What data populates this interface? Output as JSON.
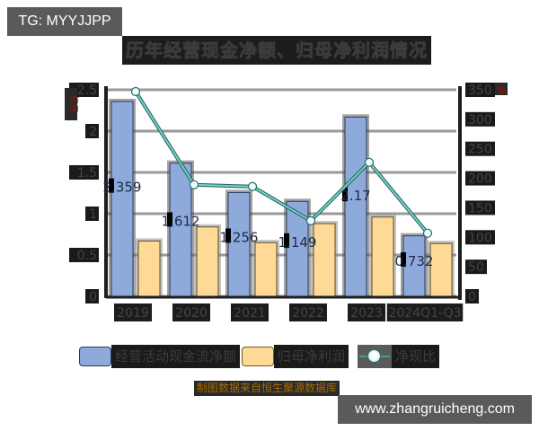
{
  "badge": {
    "text": "TG: MYYJJPP"
  },
  "title": "历年经营现金净额、归母净利润情况",
  "left_axis_unit": "亿元",
  "right_axis_unit": "%",
  "legend": [
    {
      "label": "经营活动现金流净额",
      "color": "#8eaadb",
      "type": "bar"
    },
    {
      "label": "归母净利润",
      "color": "#ffd996",
      "type": "bar"
    },
    {
      "label": "净现比",
      "color": "#6fd3c9",
      "type": "line"
    }
  ],
  "source": "制图数据来自恒生聚源数据库",
  "watermark": "www.zhangruicheng.com",
  "chart_data": {
    "type": "bar",
    "title": "历年经营现金净额、归母净利润情况",
    "categories": [
      "2019",
      "2020",
      "2021",
      "2022",
      "2023",
      "2024Q1-Q3"
    ],
    "series": [
      {
        "name": "经营活动现金流净额",
        "axis": "left",
        "type": "bar",
        "color": "#8eaadb",
        "values": [
          2.359,
          1.612,
          1.256,
          1.149,
          2.17,
          0.732
        ],
        "data_labels": [
          "2.359",
          "1.612",
          "1.256",
          "1.149",
          "2.17",
          "0.732"
        ]
      },
      {
        "name": "归母净利润",
        "axis": "left",
        "type": "bar",
        "color": "#ffd996",
        "values": [
          0.67,
          0.84,
          0.65,
          0.88,
          0.96,
          0.64
        ]
      },
      {
        "name": "净现比",
        "axis": "right",
        "type": "line",
        "color": "#6fd3c9",
        "values": [
          347,
          189,
          186,
          128,
          227,
          107
        ]
      }
    ],
    "ylabel": "亿元",
    "ylim": [
      0,
      2.5
    ],
    "yticks": [
      "0",
      "0.5",
      "1",
      "1.5",
      "2",
      "2.5"
    ],
    "y2label": "%",
    "y2lim": [
      0,
      350
    ],
    "y2ticks": [
      "0",
      "50",
      "100",
      "150",
      "200",
      "250",
      "300",
      "350"
    ],
    "grid": true,
    "legend_position": "bottom"
  }
}
